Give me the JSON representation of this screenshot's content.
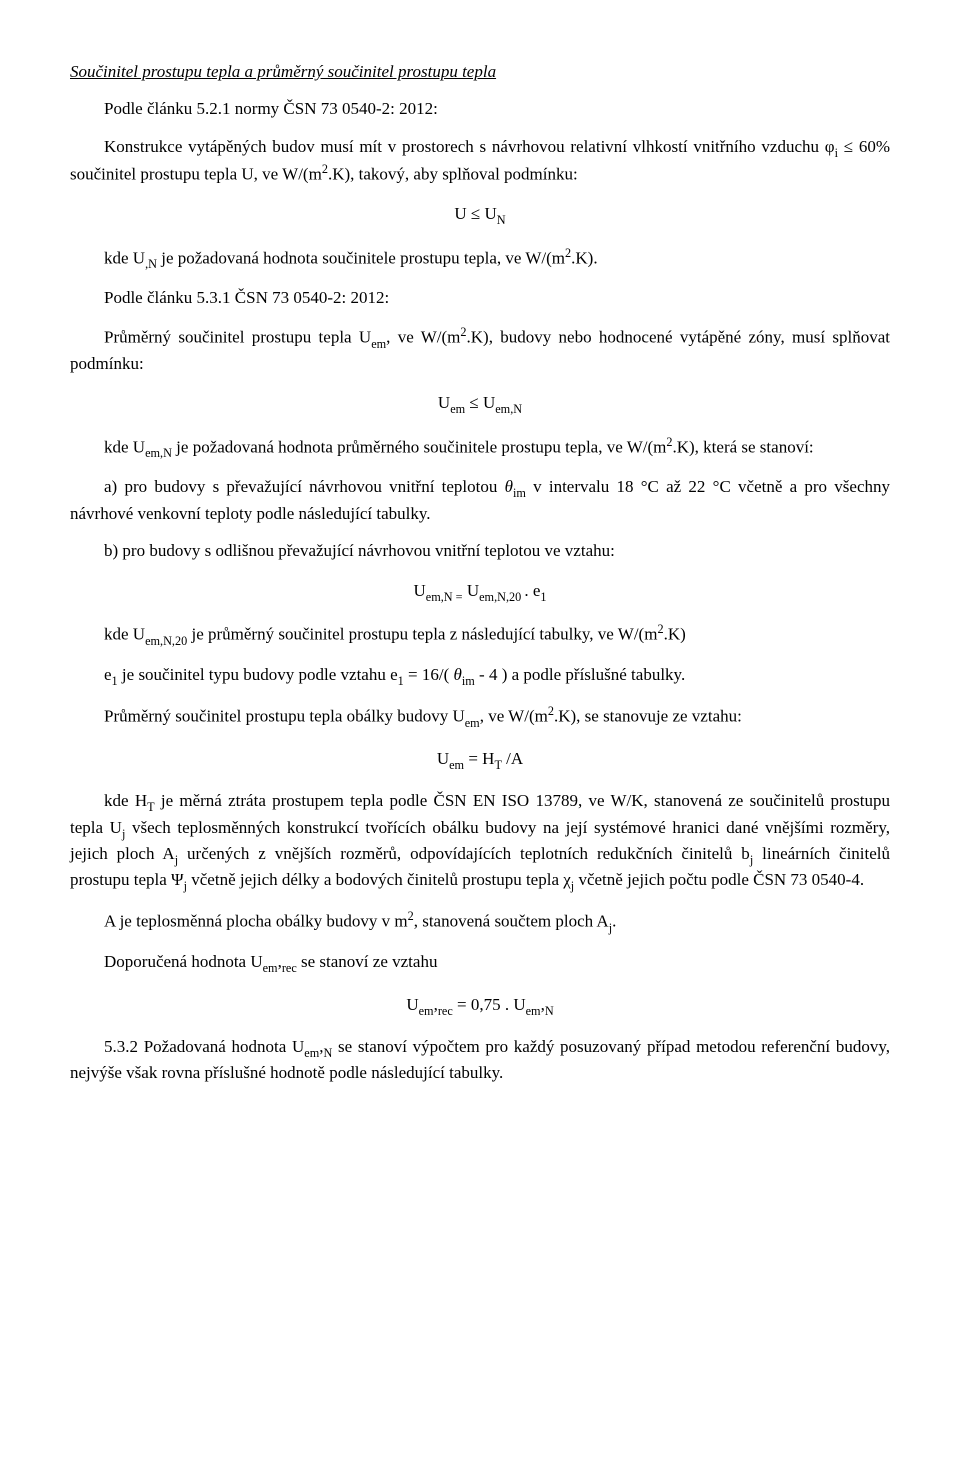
{
  "h1": "Součinitel prostupu tepla a průměrný součinitel prostupu tepla",
  "p1_pre": "Podle článku 5.2.1 normy ČSN 73 0540-2: 2012:",
  "p1_body_1": "Konstrukce vytápěných budov musí mít v prostorech s návrhovou relativní vlhkostí vnitřního vzduchu φ",
  "p1_phi_sub": "i",
  "p1_body_2": " ≤ 60% součinitel prostupu tepla U, ve W/(m",
  "p1_sq": "2",
  "p1_body_3": ".K), takový, aby splňoval podmínku:",
  "eq1_l": "U ≤ U",
  "eq1_sub": "N",
  "p3_a": "kde U",
  "p3_sub": ",N",
  "p3_b": " je požadovaná hodnota součinitele prostupu tepla, ve W/(m",
  "p3_sq": "2",
  "p3_c": ".K).",
  "p4": "Podle článku 5.3.1 ČSN 73 0540-2: 2012:",
  "p5_a": "Průměrný součinitel prostupu tepla U",
  "p5_sub": "em",
  "p5_b": ", ve W/(m",
  "p5_sq": "2",
  "p5_c": ".K), budovy nebo hodnocené vytápěné zóny, musí splňovat podmínku:",
  "eq2_l": "U",
  "eq2_l_sub": "em",
  "eq2_mid": " ≤ U",
  "eq2_r_sub": "em,N",
  "p6_a": "kde U",
  "p6_sub": "em,N",
  "p6_b": " je požadovaná hodnota průměrného součinitele prostupu tepla, ve W/(m",
  "p6_sq": "2",
  "p6_c": ".K), která se stanoví:",
  "p7_a": "a) pro budovy s převažující návrhovou vnitřní teplotou ",
  "p7_th": "θ",
  "p7_th_sub": "im",
  "p7_b": " v intervalu 18 °C až 22 °C včetně a pro všechny návrhové venkovní teploty podle následující tabulky.",
  "p8": "b) pro budovy s odlišnou převažující návrhovou vnitřní teplotou ve vztahu:",
  "eq3_l": "U",
  "eq3_l_sub": "em,N =",
  "eq3_l2": " U",
  "eq3_l2_sub": "em,N,20 ",
  "eq3_dot": ". e",
  "eq3_e_sub": "1",
  "p9_a": "kde U",
  "p9_a_sub": "em,N,20",
  "p9_b": " je průměrný součinitel prostupu tepla z následující tabulky, ve W/(m",
  "p9_sq": "2",
  "p9_c": ".K)",
  "p10_a": "e",
  "p10_a_sub": "1",
  "p10_b": " je součinitel typu budovy podle vztahu e",
  "p10_b_sub": "1",
  "p10_c": " = 16/( ",
  "p10_th": "θ",
  "p10_th_sub": "im",
  "p10_d": " - 4 ) a podle příslušné tabulky.",
  "p11_a": "Průměrný součinitel prostupu tepla obálky budovy U",
  "p11_sub": "em",
  "p11_b": ", ve W/(m",
  "p11_sq": "2",
  "p11_c": ".K), se stanovuje ze vztahu:",
  "eq4_l": "U",
  "eq4_l_sub": "em",
  "eq4_mid": " =  H",
  "eq4_r_sub": "T",
  "eq4_end": " /A",
  "p12_a": "kde H",
  "p12_h_sub": "T",
  "p12_b": " je měrná ztráta prostupem tepla podle ČSN EN ISO 13789, ve W/K, stanovená ze součinitelů prostupu tepla U",
  "p12_uj_sub": "j",
  "p12_c": " všech teplosměnných konstrukcí tvořících obálku budovy na její systémové hranici dané vnějšími rozměry, jejich ploch A",
  "p12_aj_sub": "j",
  "p12_d": " určených z vnějších rozměrů, odpovídajících teplotních redukčních činitelů b",
  "p12_bj_sub": "j",
  "p12_e": " lineárních činitelů prostupu tepla Ψ",
  "p12_psi_sub": "j",
  "p12_f": " včetně jejich délky a bodových činitelů prostupu tepla χ",
  "p12_chi_sub": "j",
  "p12_g": " včetně jejich počtu podle ČSN 73 0540-4.",
  "p13_a": "A je teplosměnná plocha obálky budovy v m",
  "p13_sq": "2",
  "p13_b": ", stanovená součtem ploch A",
  "p13_aj": "j",
  "p13_c": ".",
  "p14_a": "Doporučená hodnota U",
  "p14_sub1": "em",
  "p14_com": ",",
  "p14_sub2": "rec",
  "p14_b": " se stanoví ze vztahu",
  "eq5_l": "U",
  "eq5_sub1": "em",
  "eq5_com1": ",",
  "eq5_sub2": "rec",
  "eq5_mid": " = 0,75 . U",
  "eq5_sub3": "em",
  "eq5_com2": ",",
  "eq5_sub4": "N",
  "p15_a": "5.3.2 Požadovaná hodnota U",
  "p15_sub1": "em",
  "p15_com": ",",
  "p15_sub2": "N",
  "p15_b": " se stanoví výpočtem pro každý posuzovaný případ metodou referenční budovy, nejvýše však rovna příslušné hodnotě podle následující tabulky."
}
